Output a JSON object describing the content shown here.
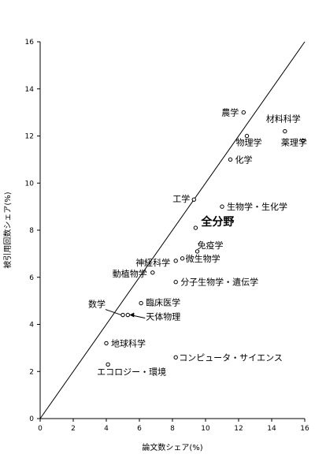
{
  "chart_data": {
    "type": "scatter",
    "title": "",
    "xlabel": "論文数シェア(%)",
    "ylabel": "被引用回数シェア(%)",
    "xlim": [
      0,
      16
    ],
    "ylim": [
      0,
      16
    ],
    "x_ticks": [
      "0",
      "2",
      "4",
      "6",
      "8",
      "10",
      "12",
      "14",
      "16"
    ],
    "y_ticks": [
      "0",
      "2",
      "4",
      "6",
      "8",
      "10",
      "12",
      "14",
      "16"
    ],
    "grid": false,
    "reference_line": {
      "x": [
        0,
        16
      ],
      "y": [
        0,
        16
      ]
    },
    "points": [
      {
        "label": "農学",
        "x": 12.3,
        "y": 13.0
      },
      {
        "label": "材料科学",
        "x": 14.8,
        "y": 12.2
      },
      {
        "label": "薬理学",
        "x": 15.9,
        "y": 11.8
      },
      {
        "label": "物理学",
        "x": 12.5,
        "y": 12.0
      },
      {
        "label": "化学",
        "x": 11.5,
        "y": 11.0
      },
      {
        "label": "工学",
        "x": 9.3,
        "y": 9.3
      },
      {
        "label": "生物学・生化学",
        "x": 11.0,
        "y": 9.0
      },
      {
        "label": "全分野",
        "x": 9.4,
        "y": 8.1
      },
      {
        "label": "免疫学",
        "x": 9.5,
        "y": 7.1
      },
      {
        "label": "神経科学",
        "x": 8.2,
        "y": 6.7
      },
      {
        "label": "微生物学",
        "x": 8.6,
        "y": 6.8
      },
      {
        "label": "動植物学",
        "x": 6.8,
        "y": 6.2
      },
      {
        "label": "分子生物学・遺伝学",
        "x": 8.2,
        "y": 5.8
      },
      {
        "label": "臨床医学",
        "x": 6.1,
        "y": 4.9
      },
      {
        "label": "数学",
        "x": 5.0,
        "y": 4.4
      },
      {
        "label": "天体物理",
        "x": 5.3,
        "y": 4.4
      },
      {
        "label": "地球科学",
        "x": 4.0,
        "y": 3.2
      },
      {
        "label": "コンピュータ・サイエンス",
        "x": 8.2,
        "y": 2.6
      },
      {
        "label": "エコロジー・環境",
        "x": 4.1,
        "y": 2.3
      }
    ]
  }
}
